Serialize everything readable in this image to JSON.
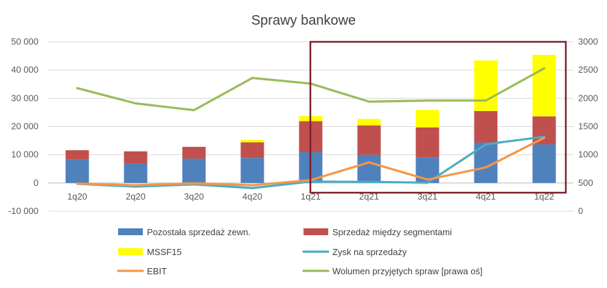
{
  "chart_data": {
    "type": "bar",
    "title": "Sprawy bankowe",
    "categories": [
      "1q20",
      "2q20",
      "3q20",
      "4q20",
      "1q21",
      "2q21",
      "3q21",
      "4q21",
      "1q22"
    ],
    "left_axis": {
      "ylim": [
        -10000,
        50000
      ],
      "ticks": [
        -10000,
        0,
        10000,
        20000,
        30000,
        40000,
        50000
      ],
      "tick_labels": [
        "-10 000",
        "0",
        "10 000",
        "20 000",
        "30 000",
        "40 000",
        "50 000"
      ]
    },
    "right_axis": {
      "ylim": [
        0,
        3000
      ],
      "ticks": [
        0,
        500,
        1000,
        1500,
        2000,
        2500,
        3000
      ],
      "tick_labels": [
        "0",
        "500",
        "1000",
        "1500",
        "2000",
        "2500",
        "3000"
      ]
    },
    "bar_series": [
      {
        "name": "Pozostała sprzedaż zewn.",
        "color": "#4f81bd",
        "values": [
          8300,
          6900,
          8600,
          8900,
          10900,
          10000,
          9100,
          14300,
          13700
        ]
      },
      {
        "name": "Sprzedaż między segmentami",
        "color": "#c0504d",
        "values": [
          3300,
          4300,
          4200,
          5500,
          11000,
          10400,
          10600,
          11200,
          9900
        ]
      },
      {
        "name": "MSSF15",
        "color": "#ffff00",
        "values": [
          0,
          0,
          0,
          900,
          1800,
          2300,
          6200,
          17900,
          21800
        ]
      }
    ],
    "line_series": [
      {
        "name": "Zysk na sprzedaży",
        "color": "#4bacc6",
        "axis": "left",
        "values": [
          -300,
          -1300,
          -500,
          -1800,
          500,
          400,
          100,
          13700,
          16400
        ]
      },
      {
        "name": "EBIT",
        "color": "#f79646",
        "axis": "left",
        "values": [
          -200,
          -800,
          -100,
          -800,
          1000,
          7300,
          1200,
          5500,
          16000
        ]
      },
      {
        "name": "Wolumen przyjętych spraw [prawa oś]",
        "color": "#9bbb59",
        "axis": "right",
        "values": [
          2180,
          1910,
          1790,
          2360,
          2260,
          1940,
          1960,
          1960,
          2530
        ]
      }
    ],
    "legend_position": "bottom",
    "grid": true
  }
}
